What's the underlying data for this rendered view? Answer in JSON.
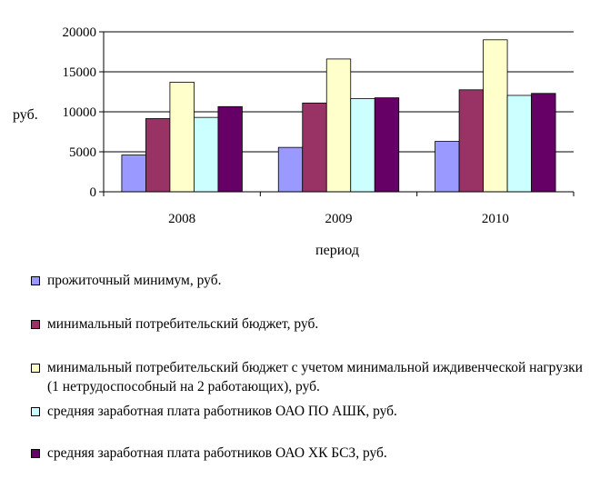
{
  "chart_data": {
    "type": "bar",
    "categories": [
      "2008",
      "2009",
      "2010"
    ],
    "series": [
      {
        "name": "прожиточный минимум, руб.",
        "color": "#9999ff",
        "values": [
          4600,
          5550,
          6300
        ]
      },
      {
        "name": "минимальный потребительский бюджет, руб.",
        "color": "#993366",
        "values": [
          9150,
          11100,
          12750
        ]
      },
      {
        "name": "минимальный потребительский бюджет с учетом минимальной иждивенческой нагрузки (1 нетрудоспособный на 2 работающих), руб.",
        "color": "#ffffcc",
        "values": [
          13700,
          16600,
          19000
        ]
      },
      {
        "name": "средняя заработная плата работников ОАО ПО АШК, руб.",
        "color": "#ccffff",
        "values": [
          9300,
          11650,
          12050
        ]
      },
      {
        "name": "средняя заработная плата работников ОАО ХК БСЗ, руб.",
        "color": "#660066",
        "values": [
          10650,
          11750,
          12300
        ]
      }
    ],
    "xlabel": "период",
    "ylabel": "руб.",
    "ylim": [
      0,
      20000
    ],
    "yticks": [
      "0",
      "5000",
      "10000",
      "15000",
      "20000"
    ],
    "grid": true,
    "legend_position": "bottom"
  }
}
